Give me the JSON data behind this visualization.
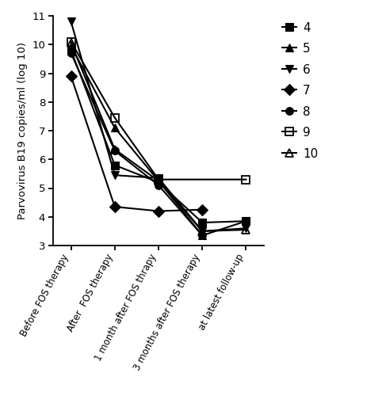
{
  "x_labels": [
    "Before FOS therapy",
    "After  FOS therapy",
    "1 month after FOS thrapy",
    "3 months after FOS therapy",
    "at latest follow-up"
  ],
  "patients": {
    "4": {
      "label": "4",
      "marker": "s",
      "fillstyle": "full",
      "values": [
        9.8,
        5.8,
        5.2,
        3.8,
        3.85
      ]
    },
    "5": {
      "label": "5",
      "marker": "^",
      "fillstyle": "full",
      "values": [
        9.95,
        7.1,
        5.25,
        3.35,
        3.85
      ]
    },
    "6": {
      "label": "6",
      "marker": "v",
      "fillstyle": "full",
      "values": [
        10.8,
        5.45,
        5.35,
        3.5,
        3.6
      ]
    },
    "7": {
      "label": "7",
      "marker": "D",
      "fillstyle": "full",
      "values": [
        8.9,
        4.35,
        4.2,
        4.25,
        null
      ]
    },
    "8": {
      "label": "8",
      "marker": "o",
      "fillstyle": "full",
      "values": [
        9.7,
        6.3,
        5.1,
        3.35,
        null
      ]
    },
    "9": {
      "label": "9",
      "marker": "s",
      "fillstyle": "none",
      "values": [
        10.1,
        7.45,
        5.3,
        null,
        5.3
      ]
    },
    "10": {
      "label": "10",
      "marker": "^",
      "fillstyle": "none",
      "values": [
        10.05,
        6.35,
        5.25,
        3.5,
        3.55
      ]
    }
  },
  "ylabel": "Parvovirus B19 copies/ml (log 10)",
  "ylim": [
    3,
    11
  ],
  "yticks": [
    3,
    4,
    5,
    6,
    7,
    8,
    9,
    10,
    11
  ],
  "color": "#000000",
  "background_color": "#ffffff",
  "marker_size": 7,
  "linewidth": 1.5,
  "xlabel_rotation": 62,
  "xlabel_fontsize": 8.5,
  "ylabel_fontsize": 9.5,
  "ytick_fontsize": 9.5,
  "legend_fontsize": 11
}
